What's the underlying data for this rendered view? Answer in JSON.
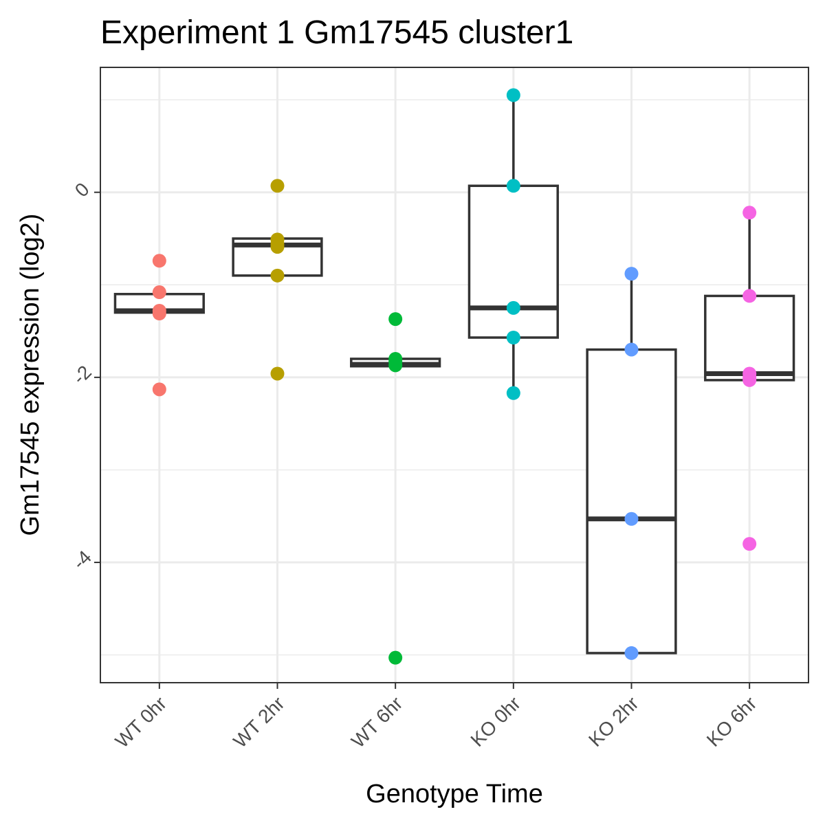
{
  "chart_data": {
    "type": "box",
    "title": "Experiment 1 Gm17545 cluster1",
    "xlabel": "Genotype Time",
    "ylabel": "Gm17545 expression (log2)",
    "ylim": [
      -5.3,
      1.35
    ],
    "y_ticks": [
      0,
      -2,
      -4
    ],
    "y_tick_labels": [
      "0",
      "-2",
      "-4"
    ],
    "y_minor_ticks": [
      1,
      -1,
      -3,
      -5
    ],
    "grid": true,
    "categories": [
      "WT 0hr",
      "WT 2hr",
      "WT 6hr",
      "KO 0hr",
      "KO 2hr",
      "KO 6hr"
    ],
    "colors": [
      "#F8766D",
      "#B79F00",
      "#00BA38",
      "#00BFC4",
      "#619CFF",
      "#F564E3"
    ],
    "boxes": [
      {
        "q1": -1.3,
        "median": -1.28,
        "q3": -1.1,
        "whisker_low": -1.3,
        "whisker_high": -1.1
      },
      {
        "q1": -0.9,
        "median": -0.57,
        "q3": -0.5,
        "whisker_low": -0.9,
        "whisker_high": -0.5
      },
      {
        "q1": -1.88,
        "median": -1.86,
        "q3": -1.8,
        "whisker_low": -1.88,
        "whisker_high": -1.8
      },
      {
        "q1": -1.57,
        "median": -1.25,
        "q3": 0.07,
        "whisker_low": -2.17,
        "whisker_high": 1.05
      },
      {
        "q1": -4.98,
        "median": -3.53,
        "q3": -1.7,
        "whisker_low": -4.98,
        "whisker_high": -0.88
      },
      {
        "q1": -2.03,
        "median": -1.96,
        "q3": -1.12,
        "whisker_low": -2.03,
        "whisker_high": -0.22
      }
    ],
    "points": [
      [
        -0.74,
        -1.08,
        -1.28,
        -1.31,
        -2.13
      ],
      [
        0.07,
        -0.51,
        -0.56,
        -0.59,
        -0.9,
        -1.96
      ],
      [
        -1.37,
        -1.8,
        -1.83,
        -1.87,
        -5.03
      ],
      [
        1.05,
        0.07,
        -1.25,
        -1.57,
        -2.17
      ],
      [
        -0.88,
        -1.7,
        -3.53,
        -4.98
      ],
      [
        -0.22,
        -1.12,
        -1.96,
        -2.0,
        -2.03,
        -3.8
      ]
    ]
  }
}
